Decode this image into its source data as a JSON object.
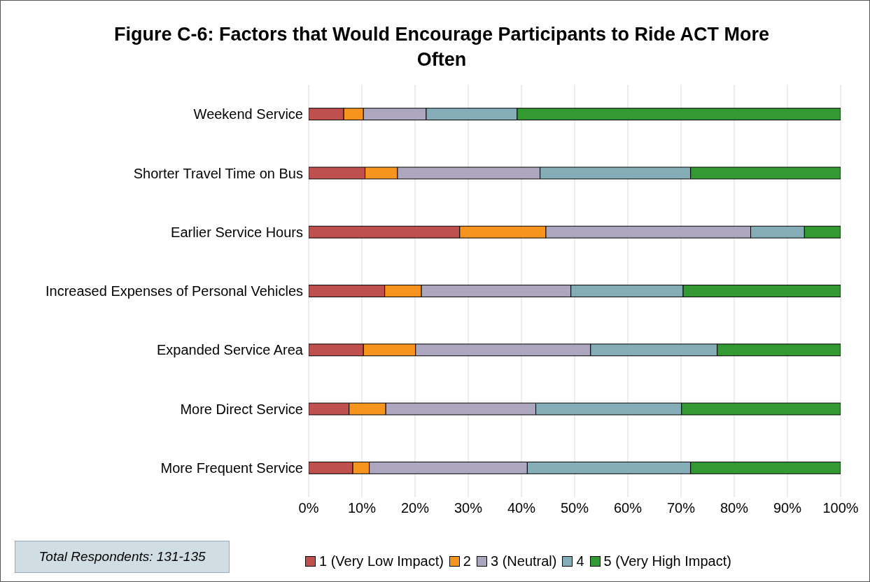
{
  "chart_data": {
    "type": "bar",
    "orientation": "horizontal",
    "stacked": true,
    "title": "Figure C-6: Factors that Would Encourage Participants to Ride ACT More Often",
    "categories": [
      "Weekend Service",
      "Shorter Travel Time on Bus",
      "Earlier Service Hours",
      "Increased Expenses of Personal Vehicles",
      "Expanded Service Area",
      "More Direct Service",
      "More Frequent Service"
    ],
    "series": [
      {
        "name": "1 (Very Low Impact)",
        "color": "#c0504d",
        "values": [
          6.6,
          10.6,
          28.4,
          14.3,
          10.3,
          7.6,
          8.3
        ]
      },
      {
        "name": "2",
        "color": "#f7941d",
        "values": [
          3.7,
          6.1,
          16.2,
          6.9,
          9.8,
          6.9,
          3.1
        ]
      },
      {
        "name": "3 (Neutral)",
        "color": "#aca6bf",
        "values": [
          11.8,
          26.8,
          38.5,
          28.1,
          32.9,
          28.2,
          29.7
        ]
      },
      {
        "name": "4",
        "color": "#84adb8",
        "values": [
          17.1,
          28.3,
          10.1,
          21.1,
          23.8,
          27.4,
          30.7
        ]
      },
      {
        "name": "5 (Very High Impact)",
        "color": "#339933",
        "values": [
          60.8,
          28.2,
          6.8,
          29.6,
          23.2,
          29.9,
          28.2
        ]
      }
    ],
    "xlim": [
      0,
      100
    ],
    "xticks": [
      {
        "value": 0,
        "label": "0%"
      },
      {
        "value": 10,
        "label": "10%"
      },
      {
        "value": 20,
        "label": "20%"
      },
      {
        "value": 30,
        "label": "30%"
      },
      {
        "value": 40,
        "label": "40%"
      },
      {
        "value": 50,
        "label": "50%"
      },
      {
        "value": 60,
        "label": "60%"
      },
      {
        "value": 70,
        "label": "70%"
      },
      {
        "value": 80,
        "label": "80%"
      },
      {
        "value": 90,
        "label": "90%"
      },
      {
        "value": 100,
        "label": "100%"
      }
    ],
    "grid": "x",
    "legend": "bottom",
    "annotations": [
      "Total Respondents: 131-135"
    ]
  }
}
